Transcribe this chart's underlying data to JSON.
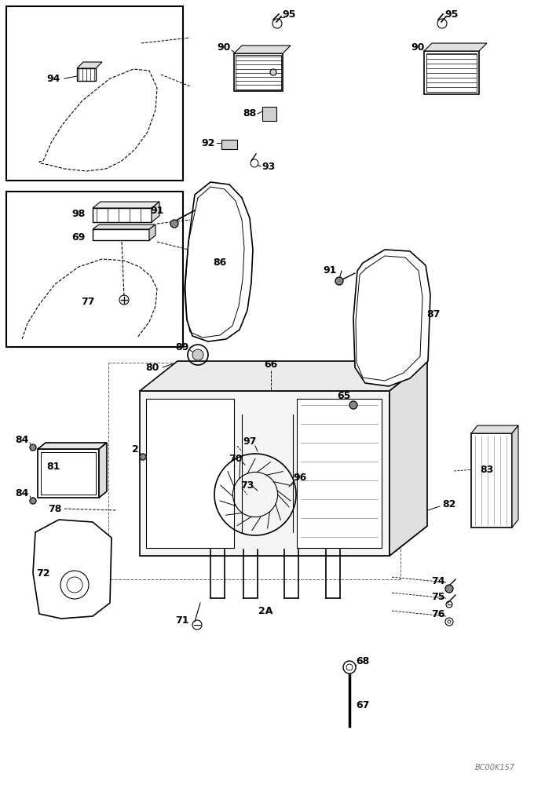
{
  "bg_color": "#ffffff",
  "line_color": "#000000",
  "watermark": "BC00K157"
}
